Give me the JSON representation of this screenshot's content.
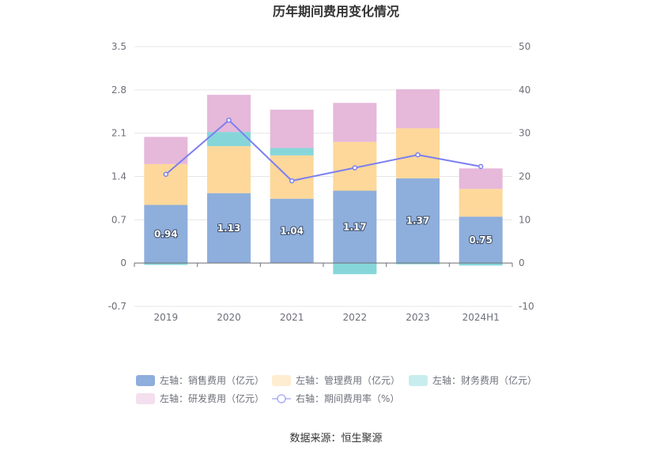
{
  "chart_data": {
    "type": "bar",
    "title": "历年期间费用变化情况",
    "source": "数据来源：恒生聚源",
    "categories": [
      "2019",
      "2020",
      "2021",
      "2022",
      "2023",
      "2024H1"
    ],
    "left_axis": {
      "min": -0.7,
      "max": 3.5,
      "ticks": [
        "-0.7",
        "0",
        "0.7",
        "1.4",
        "2.1",
        "2.8",
        "3.5"
      ]
    },
    "right_axis": {
      "min": -10,
      "max": 50,
      "ticks": [
        "-10",
        "0",
        "10",
        "20",
        "30",
        "40",
        "50"
      ]
    },
    "series": [
      {
        "name": "左轴：销售费用（亿元）",
        "type": "bar",
        "color": "#8eaedc",
        "values": [
          0.94,
          1.13,
          1.04,
          1.17,
          1.37,
          0.75
        ],
        "labels": [
          "0.94",
          "1.13",
          "1.04",
          "1.17",
          "1.37",
          "0.75"
        ]
      },
      {
        "name": "左轴：管理费用（亿元）",
        "type": "bar",
        "color": "#fdd89a",
        "values": [
          0.66,
          0.76,
          0.7,
          0.79,
          0.81,
          0.45
        ]
      },
      {
        "name": "左轴：财务费用（亿元）",
        "type": "bar",
        "color": "#86d6d9",
        "values": [
          -0.03,
          0.23,
          0.12,
          -0.18,
          -0.02,
          -0.04
        ]
      },
      {
        "name": "左轴：研发费用（亿元）",
        "type": "bar",
        "color": "#e6b8da",
        "values": [
          0.44,
          0.6,
          0.62,
          0.63,
          0.63,
          0.33
        ]
      },
      {
        "name": "右轴：期间费用率（%）",
        "type": "line",
        "color": "#7b7ff0",
        "values": [
          20.5,
          33,
          19,
          22,
          25,
          22.3
        ]
      }
    ],
    "grid": true,
    "legend_position": "bottom"
  }
}
